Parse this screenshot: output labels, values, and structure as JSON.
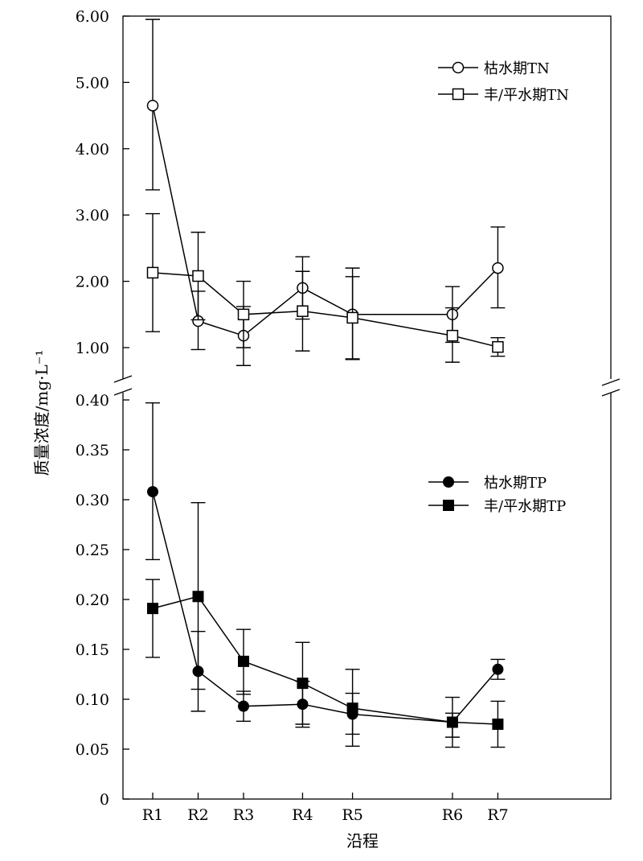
{
  "chart_data": [
    {
      "type": "line",
      "panel": "upper",
      "xlabel": "沿程",
      "ylabel": "质量浓度/mg·L⁻¹",
      "ylim": [
        0.6,
        6.0
      ],
      "y_ticks": [
        "6.00",
        "5.00",
        "4.00",
        "3.00",
        "2.00",
        "1.00"
      ],
      "categories": [
        "R1",
        "R2",
        "R3",
        "R4",
        "R5",
        "R6",
        "R7"
      ],
      "x_positions": [
        1,
        2,
        3,
        4.3,
        5.4,
        7.6,
        8.6
      ],
      "legend_position": "top-right",
      "grid": false,
      "series": [
        {
          "name": "枯水期TN",
          "marker": "open-circle",
          "values": [
            4.65,
            1.4,
            1.18,
            1.9,
            1.5,
            1.5,
            2.2
          ],
          "err_low": [
            3.38,
            0.97,
            0.73,
            0.95,
            0.82,
            1.08,
            1.6
          ],
          "err_high": [
            5.95,
            1.85,
            1.62,
            2.37,
            2.2,
            1.92,
            2.82
          ]
        },
        {
          "name": "丰/平水期TN",
          "marker": "open-square",
          "values": [
            2.13,
            2.08,
            1.5,
            1.55,
            1.45,
            1.18,
            1.01
          ],
          "err_low": [
            1.24,
            1.42,
            1.0,
            1.43,
            0.83,
            0.78,
            0.87
          ],
          "err_high": [
            3.02,
            2.74,
            2.0,
            2.15,
            2.07,
            1.6,
            1.15
          ]
        }
      ]
    },
    {
      "type": "line",
      "panel": "lower",
      "ylim": [
        0,
        0.4
      ],
      "y_ticks": [
        "0.40",
        "0.35",
        "0.30",
        "0.25",
        "0.20",
        "0.15",
        "0.10",
        "0.05",
        "0"
      ],
      "categories": [
        "R1",
        "R2",
        "R3",
        "R4",
        "R5",
        "R6",
        "R7"
      ],
      "x_positions": [
        1,
        2,
        3,
        4.3,
        5.4,
        7.6,
        8.6
      ],
      "legend_position": "top-right",
      "grid": false,
      "series": [
        {
          "name": "枯水期TP",
          "marker": "filled-circle",
          "values": [
            0.308,
            0.128,
            0.093,
            0.095,
            0.085,
            0.077,
            0.13
          ],
          "err_low": [
            0.24,
            0.088,
            0.078,
            0.072,
            0.065,
            0.062,
            0.12
          ],
          "err_high": [
            0.397,
            0.168,
            0.108,
            0.118,
            0.106,
            0.086,
            0.14
          ]
        },
        {
          "name": "丰/平水期TP",
          "marker": "filled-square",
          "values": [
            0.191,
            0.203,
            0.138,
            0.116,
            0.091,
            0.077,
            0.075
          ],
          "err_low": [
            0.142,
            0.11,
            0.105,
            0.075,
            0.053,
            0.052,
            0.052
          ],
          "err_high": [
            0.22,
            0.297,
            0.17,
            0.157,
            0.13,
            0.102,
            0.098
          ]
        }
      ]
    }
  ]
}
